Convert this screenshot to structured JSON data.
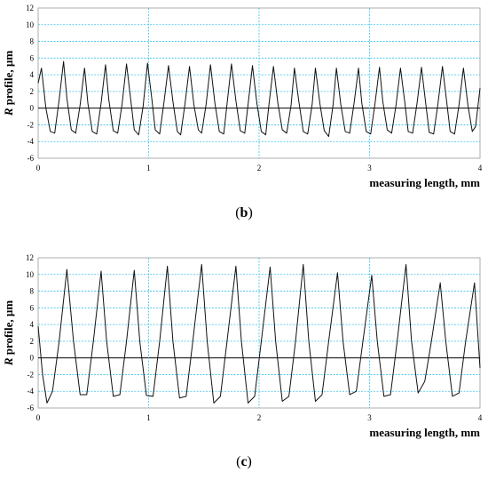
{
  "colors": {
    "grid": "#35c0e8",
    "trace": "#111111",
    "zero_line": "#000000",
    "frame": "#999999"
  },
  "chart_data": [
    {
      "type": "line",
      "caption_prefix": "(",
      "caption_letter": "b",
      "caption_suffix": ")",
      "xlabel": "measuring length, mm",
      "ylabel_italic": "R",
      "ylabel_rest": " profile, µm",
      "xlim": [
        0,
        4
      ],
      "ylim": [
        -6,
        12
      ],
      "x_ticks": [
        0,
        1,
        2,
        3,
        4
      ],
      "y_ticks": [
        -6,
        -4,
        -2,
        0,
        2,
        4,
        6,
        8,
        10,
        12
      ],
      "grid": true,
      "series": [
        {
          "x": [
            0.0,
            0.03,
            0.07,
            0.11,
            0.15,
            0.19,
            0.23,
            0.26,
            0.3,
            0.34,
            0.38,
            0.42,
            0.45,
            0.49,
            0.53,
            0.57,
            0.61,
            0.64,
            0.68,
            0.72,
            0.76,
            0.8,
            0.84,
            0.87,
            0.91,
            0.95,
            0.99,
            1.03,
            1.06,
            1.1,
            1.14,
            1.18,
            1.22,
            1.26,
            1.29,
            1.33,
            1.37,
            1.41,
            1.45,
            1.48,
            1.52,
            1.56,
            1.6,
            1.64,
            1.68,
            1.71,
            1.75,
            1.79,
            1.83,
            1.87,
            1.9,
            1.94,
            1.98,
            2.02,
            2.06,
            2.09,
            2.13,
            2.17,
            2.21,
            2.25,
            2.29,
            2.32,
            2.36,
            2.4,
            2.44,
            2.48,
            2.51,
            2.55,
            2.59,
            2.63,
            2.67,
            2.7,
            2.74,
            2.78,
            2.82,
            2.86,
            2.9,
            2.93,
            2.97,
            3.01,
            3.05,
            3.09,
            3.12,
            3.16,
            3.2,
            3.24,
            3.28,
            3.32,
            3.35,
            3.39,
            3.43,
            3.47,
            3.51,
            3.54,
            3.58,
            3.62,
            3.66,
            3.7,
            3.73,
            3.77,
            3.81,
            3.85,
            3.89,
            3.93,
            3.96,
            4.0
          ],
          "y": [
            3.0,
            4.8,
            0.0,
            -2.8,
            -3.0,
            1.0,
            5.6,
            1.2,
            -2.6,
            -3.0,
            0.4,
            4.8,
            0.6,
            -2.8,
            -3.1,
            0.6,
            5.2,
            1.0,
            -2.7,
            -3.0,
            0.5,
            5.3,
            0.8,
            -2.6,
            -3.2,
            0.2,
            5.4,
            1.0,
            -2.6,
            -3.1,
            0.8,
            5.1,
            0.8,
            -2.8,
            -3.2,
            0.6,
            5.0,
            0.4,
            -2.6,
            -3.0,
            0.4,
            5.2,
            0.6,
            -2.8,
            -3.1,
            0.5,
            5.3,
            0.9,
            -2.7,
            -3.0,
            0.4,
            5.1,
            0.6,
            -2.8,
            -3.2,
            0.5,
            5.0,
            0.6,
            -2.6,
            -3.0,
            0.4,
            4.8,
            0.8,
            -2.8,
            -3.1,
            0.4,
            4.8,
            0.6,
            -2.7,
            -3.4,
            0.4,
            4.8,
            0.4,
            -2.8,
            -3.0,
            0.6,
            4.8,
            0.6,
            -2.8,
            -3.1,
            0.6,
            4.9,
            0.8,
            -2.6,
            -3.0,
            0.4,
            4.8,
            0.6,
            -2.8,
            -3.0,
            0.6,
            4.9,
            0.4,
            -2.9,
            -3.1,
            0.6,
            5.0,
            0.6,
            -2.8,
            -3.1,
            0.4,
            4.8,
            0.4,
            -2.8,
            -2.2,
            2.4
          ]
        }
      ]
    },
    {
      "type": "line",
      "caption_prefix": "(",
      "caption_letter": "c",
      "caption_suffix": ")",
      "xlabel": "measuring length, mm",
      "ylabel_italic": "R",
      "ylabel_rest": " profile, µm",
      "xlim": [
        0,
        4
      ],
      "ylim": [
        -6,
        12
      ],
      "x_ticks": [
        0,
        1,
        2,
        3,
        4
      ],
      "y_ticks": [
        -6,
        -4,
        -2,
        0,
        2,
        4,
        6,
        8,
        10,
        12
      ],
      "grid": true,
      "series": [
        {
          "x": [
            0.0,
            0.04,
            0.08,
            0.13,
            0.19,
            0.26,
            0.32,
            0.38,
            0.44,
            0.5,
            0.57,
            0.62,
            0.68,
            0.74,
            0.8,
            0.87,
            0.92,
            0.98,
            1.04,
            1.1,
            1.17,
            1.22,
            1.28,
            1.34,
            1.4,
            1.48,
            1.53,
            1.59,
            1.65,
            1.71,
            1.79,
            1.84,
            1.9,
            1.96,
            2.02,
            2.1,
            2.15,
            2.21,
            2.27,
            2.33,
            2.4,
            2.45,
            2.51,
            2.57,
            2.63,
            2.71,
            2.76,
            2.82,
            2.88,
            2.94,
            3.02,
            3.07,
            3.13,
            3.19,
            3.25,
            3.33,
            3.38,
            3.44,
            3.5,
            3.56,
            3.64,
            3.69,
            3.75,
            3.81,
            3.87,
            3.95,
            4.0
          ],
          "y": [
            3.8,
            -2.0,
            -5.4,
            -4.0,
            2.0,
            10.6,
            2.0,
            -4.4,
            -4.4,
            2.0,
            10.4,
            2.0,
            -4.6,
            -4.4,
            2.0,
            10.5,
            2.0,
            -4.5,
            -4.6,
            2.0,
            11.0,
            2.0,
            -4.8,
            -4.6,
            2.0,
            11.2,
            2.0,
            -5.4,
            -4.6,
            2.0,
            11.0,
            2.0,
            -5.4,
            -4.6,
            2.0,
            10.9,
            2.0,
            -5.2,
            -4.6,
            2.0,
            11.2,
            2.0,
            -5.2,
            -4.4,
            2.0,
            10.2,
            2.0,
            -4.4,
            -4.0,
            2.0,
            9.9,
            2.0,
            -4.6,
            -4.4,
            2.0,
            11.2,
            2.0,
            -4.2,
            -2.8,
            2.0,
            9.0,
            2.0,
            -4.6,
            -4.2,
            2.0,
            9.0,
            -1.2
          ]
        }
      ]
    }
  ]
}
